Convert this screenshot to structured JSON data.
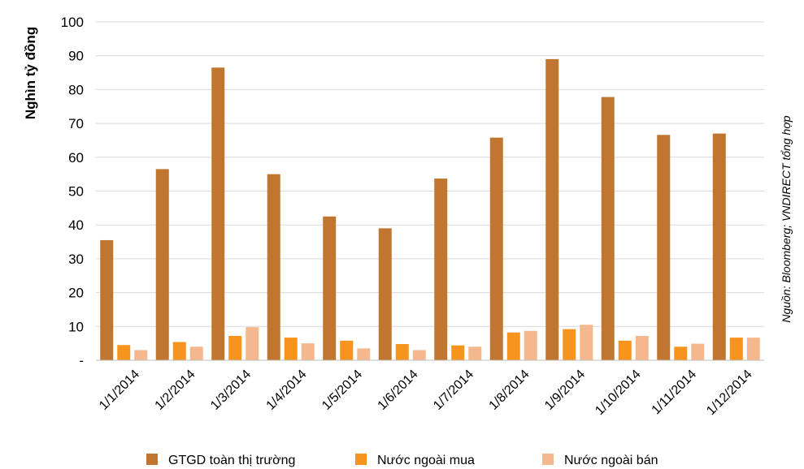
{
  "chart_data": {
    "type": "bar",
    "title": "",
    "xlabel": "",
    "ylabel": "Nghìn tỷ đồng",
    "source_note": "Nguồn: Bloomberg; VNDIRECT tổng hợp",
    "ylim": [
      0,
      100
    ],
    "yticks": [
      0,
      10,
      20,
      30,
      40,
      50,
      60,
      70,
      80,
      90,
      100
    ],
    "ytick_labels": [
      "-",
      "10",
      "20",
      "30",
      "40",
      "50",
      "60",
      "70",
      "80",
      "90",
      "100"
    ],
    "grid": true,
    "legend_position": "bottom",
    "categories": [
      "1/1/2014",
      "1/2/2014",
      "1/3/2014",
      "1/4/2014",
      "1/5/2014",
      "1/6/2014",
      "1/7/2014",
      "1/8/2014",
      "1/9/2014",
      "1/10/2014",
      "1/11/2014",
      "1/12/2014"
    ],
    "series": [
      {
        "name": "GTGD toàn thị trường",
        "color": "#C0762F",
        "values": [
          35.5,
          56.5,
          86.5,
          55,
          42.5,
          39,
          53.7,
          65.8,
          89,
          77.8,
          66.6,
          67
        ]
      },
      {
        "name": "Nước ngoài mua",
        "color": "#F7941D",
        "values": [
          4.5,
          5.4,
          7.2,
          6.7,
          5.8,
          4.8,
          4.4,
          8.2,
          9.2,
          5.8,
          4,
          6.7
        ]
      },
      {
        "name": "Nước ngoài bán",
        "color": "#F5B88E",
        "values": [
          3,
          4,
          9.8,
          5,
          3.5,
          3,
          4,
          8.7,
          10.5,
          7.2,
          4.9,
          6.7
        ]
      }
    ]
  }
}
